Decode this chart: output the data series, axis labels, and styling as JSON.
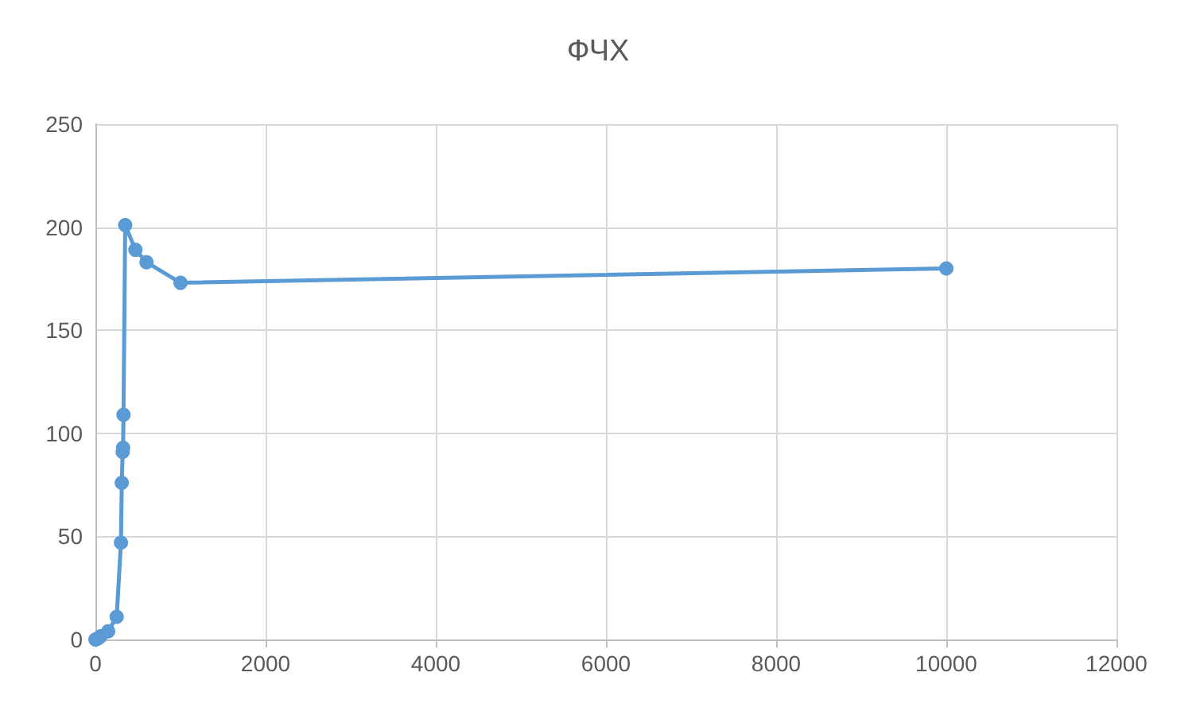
{
  "chart_data": {
    "type": "line",
    "title": "ФЧХ",
    "x": [
      0,
      30,
      60,
      150,
      250,
      300,
      310,
      320,
      325,
      330,
      350,
      470,
      600,
      1000,
      10000
    ],
    "series": [
      {
        "color": "#5b9bd5",
        "values": [
          0,
          0.5,
          1.5,
          4,
          11,
          47,
          76,
          91,
          93,
          109,
          201,
          189,
          183,
          173,
          180
        ]
      }
    ],
    "xlim": [
      0,
      12000
    ],
    "xticks": [
      0,
      2000,
      4000,
      6000,
      8000,
      10000,
      12000
    ],
    "ylim": [
      0,
      250
    ],
    "yticks": [
      0,
      50,
      100,
      150,
      200,
      250
    ],
    "grid": true,
    "marker": "circle",
    "line_style": "solid"
  }
}
